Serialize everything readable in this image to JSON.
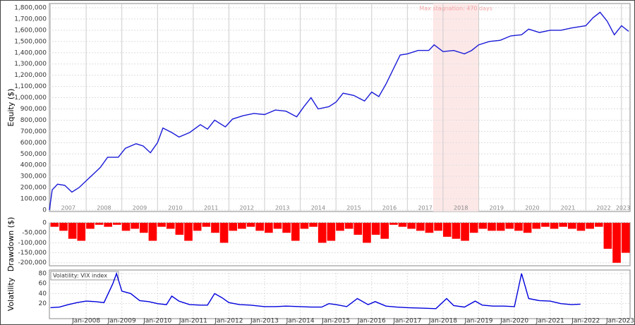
{
  "chart_data": [
    {
      "type": "line",
      "y_label": "Equity ($)",
      "color": "#1a1ad8",
      "grid": true,
      "xlim": [
        2006.97,
        2023.24
      ],
      "ylim": [
        -12500,
        1837600
      ],
      "xticks": [
        {
          "value": 2007,
          "label": "2007"
        },
        {
          "value": 2008,
          "label": "2008"
        },
        {
          "value": 2009,
          "label": "2009"
        },
        {
          "value": 2010,
          "label": "2010"
        },
        {
          "value": 2011,
          "label": "2011"
        },
        {
          "value": 2012,
          "label": "2012"
        },
        {
          "value": 2013,
          "label": "2013"
        },
        {
          "value": 2014,
          "label": "2014"
        },
        {
          "value": 2015,
          "label": "2015"
        },
        {
          "value": 2016,
          "label": "2016"
        },
        {
          "value": 2017,
          "label": "2017"
        },
        {
          "value": 2018,
          "label": "2018"
        },
        {
          "value": 2019,
          "label": "2019"
        },
        {
          "value": 2020,
          "label": "2020"
        },
        {
          "value": 2021,
          "label": "2021"
        },
        {
          "value": 2022,
          "label": "2022"
        },
        {
          "value": 2023,
          "label": "2023"
        }
      ],
      "yticks": [
        0,
        {
          "value": 100000,
          "label": "100,000"
        },
        {
          "value": 200000,
          "label": "200,000"
        },
        {
          "value": 300000,
          "label": "300,000"
        },
        {
          "value": 400000,
          "label": "400,000"
        },
        {
          "value": 500000,
          "label": "500,000"
        },
        {
          "value": 600000,
          "label": "600,000"
        },
        {
          "value": 700000,
          "label": "700,000"
        },
        {
          "value": 800000,
          "label": "800,000"
        },
        {
          "value": 900000,
          "label": "900,000"
        },
        {
          "value": 1000000,
          "label": "1,000,000"
        },
        {
          "value": 1100000,
          "label": "1,100,000"
        },
        {
          "value": 1200000,
          "label": "1,200,000"
        },
        {
          "value": 1300000,
          "label": "1,300,000"
        },
        {
          "value": 1400000,
          "label": "1,400,000"
        },
        {
          "value": 1500000,
          "label": "1,500,000"
        },
        {
          "value": 1600000,
          "label": "1,600,000"
        },
        {
          "value": 1700000,
          "label": "1,700,000"
        },
        {
          "value": 1800000,
          "label": "1,800,000"
        }
      ],
      "annotations": [
        {
          "text": "Max stagnation: 470 days",
          "x0": 2017.72,
          "x1": 2019.0
        }
      ],
      "x": [
        2006.97,
        2007.05,
        2007.2,
        2007.4,
        2007.6,
        2007.8,
        2008.0,
        2008.2,
        2008.4,
        2008.6,
        2008.9,
        2009.1,
        2009.4,
        2009.6,
        2009.8,
        2010.0,
        2010.15,
        2010.4,
        2010.6,
        2010.9,
        2011.2,
        2011.4,
        2011.6,
        2011.9,
        2012.1,
        2012.4,
        2012.7,
        2013.0,
        2013.3,
        2013.6,
        2013.9,
        2014.1,
        2014.3,
        2014.5,
        2014.8,
        2015.0,
        2015.2,
        2015.5,
        2015.8,
        2016.0,
        2016.2,
        2016.4,
        2016.6,
        2016.8,
        2017.0,
        2017.3,
        2017.6,
        2017.75,
        2018.0,
        2018.3,
        2018.6,
        2018.8,
        2019.0,
        2019.3,
        2019.6,
        2019.9,
        2020.2,
        2020.4,
        2020.7,
        2021.0,
        2021.3,
        2021.6,
        2021.8,
        2022.0,
        2022.2,
        2022.4,
        2022.6,
        2022.8,
        2023.0,
        2023.2
      ],
      "values": [
        0,
        180000,
        230000,
        220000,
        160000,
        200000,
        260000,
        320000,
        380000,
        470000,
        470000,
        550000,
        590000,
        570000,
        510000,
        600000,
        730000,
        690000,
        650000,
        690000,
        760000,
        720000,
        800000,
        740000,
        810000,
        840000,
        860000,
        850000,
        890000,
        880000,
        830000,
        920000,
        1000000,
        900000,
        920000,
        960000,
        1040000,
        1020000,
        970000,
        1050000,
        1010000,
        1120000,
        1250000,
        1380000,
        1390000,
        1420000,
        1420000,
        1470000,
        1410000,
        1420000,
        1390000,
        1420000,
        1470000,
        1500000,
        1510000,
        1550000,
        1560000,
        1610000,
        1580000,
        1600000,
        1600000,
        1620000,
        1630000,
        1640000,
        1710000,
        1760000,
        1680000,
        1560000,
        1640000,
        1590000
      ]
    },
    {
      "type": "bar",
      "y_label": "Drawdown ($)",
      "color": "#ff0000",
      "grid": true,
      "xlim": [
        2006.97,
        2023.24
      ],
      "ylim": [
        -215000,
        0
      ],
      "yticks": [
        0,
        {
          "value": -50000,
          "label": "-50,000"
        },
        {
          "value": -100000,
          "label": "-100,000"
        },
        {
          "value": -150000,
          "label": "-150,000"
        },
        {
          "value": -200000,
          "label": "-200,000"
        }
      ],
      "x": [
        2007.0,
        2007.25,
        2007.5,
        2007.75,
        2008.0,
        2008.25,
        2008.5,
        2008.75,
        2009.0,
        2009.25,
        2009.5,
        2009.75,
        2010.0,
        2010.25,
        2010.5,
        2010.75,
        2011.0,
        2011.25,
        2011.5,
        2011.75,
        2012.0,
        2012.25,
        2012.5,
        2012.75,
        2013.0,
        2013.25,
        2013.5,
        2013.75,
        2014.0,
        2014.25,
        2014.5,
        2014.75,
        2015.0,
        2015.25,
        2015.5,
        2015.75,
        2016.0,
        2016.25,
        2016.5,
        2016.75,
        2017.0,
        2017.25,
        2017.5,
        2017.75,
        2018.0,
        2018.25,
        2018.5,
        2018.75,
        2019.0,
        2019.25,
        2019.5,
        2019.75,
        2020.0,
        2020.25,
        2020.5,
        2020.75,
        2021.0,
        2021.25,
        2021.5,
        2021.75,
        2022.0,
        2022.25,
        2022.5,
        2022.75,
        2023.0
      ],
      "values": [
        -20000,
        -40000,
        -80000,
        -90000,
        -30000,
        -10000,
        -20000,
        -10000,
        -40000,
        -30000,
        -50000,
        -90000,
        -20000,
        -30000,
        -60000,
        -90000,
        -40000,
        -20000,
        -50000,
        -100000,
        -40000,
        -30000,
        -20000,
        -40000,
        -50000,
        -30000,
        -50000,
        -90000,
        -30000,
        -20000,
        -100000,
        -90000,
        -40000,
        -30000,
        -60000,
        -100000,
        -60000,
        -80000,
        -10000,
        -20000,
        -30000,
        -40000,
        -50000,
        -40000,
        -70000,
        -80000,
        -90000,
        -50000,
        -30000,
        -40000,
        -40000,
        -30000,
        -40000,
        -50000,
        -30000,
        -20000,
        -30000,
        -20000,
        -30000,
        -40000,
        -30000,
        -20000,
        -130000,
        -200000,
        -150000
      ]
    },
    {
      "type": "line",
      "y_label": "Volatility",
      "title": "Volatility: VIX index",
      "color": "#0000dd",
      "grid": true,
      "xlim": [
        2006.97,
        2023.24
      ],
      "ylim": [
        -10,
        87
      ],
      "xticks": [
        {
          "value": 2008,
          "label": "Jan-2008"
        },
        {
          "value": 2009,
          "label": "Jan-2009"
        },
        {
          "value": 2010,
          "label": "Jan-2010"
        },
        {
          "value": 2011,
          "label": "Jan-2011"
        },
        {
          "value": 2012,
          "label": "Jan-2012"
        },
        {
          "value": 2013,
          "label": "Jan-2013"
        },
        {
          "value": 2014,
          "label": "Jan-2014"
        },
        {
          "value": 2015,
          "label": "Jan-2015"
        },
        {
          "value": 2016,
          "label": "Jan-2016"
        },
        {
          "value": 2017,
          "label": "Jan-2017"
        },
        {
          "value": 2018,
          "label": "Jan-2018"
        },
        {
          "value": 2019,
          "label": "Jan-2019"
        },
        {
          "value": 2020,
          "label": "Jan-2020"
        },
        {
          "value": 2021,
          "label": "Jan-2021"
        },
        {
          "value": 2022,
          "label": "Jan-2022"
        },
        {
          "value": 2023,
          "label": "Jan-2023"
        }
      ],
      "yticks": [
        20,
        40,
        60,
        80
      ],
      "x": [
        2007.0,
        2007.25,
        2007.5,
        2007.75,
        2008.0,
        2008.25,
        2008.5,
        2008.75,
        2008.85,
        2009.0,
        2009.25,
        2009.5,
        2009.75,
        2010.0,
        2010.25,
        2010.4,
        2010.6,
        2010.9,
        2011.2,
        2011.4,
        2011.6,
        2011.8,
        2012.0,
        2012.3,
        2012.6,
        2013.0,
        2013.3,
        2013.6,
        2014.0,
        2014.3,
        2014.6,
        2014.8,
        2015.0,
        2015.3,
        2015.6,
        2015.9,
        2016.1,
        2016.4,
        2016.7,
        2017.0,
        2017.4,
        2017.8,
        2018.1,
        2018.3,
        2018.6,
        2018.9,
        2019.1,
        2019.4,
        2019.7,
        2020.0,
        2020.2,
        2020.4,
        2020.7,
        2021.0,
        2021.3,
        2021.6,
        2021.85
      ],
      "values": [
        12,
        13,
        18,
        22,
        25,
        24,
        22,
        60,
        80,
        45,
        40,
        26,
        24,
        20,
        18,
        35,
        25,
        18,
        17,
        17,
        40,
        32,
        22,
        18,
        17,
        14,
        14,
        15,
        14,
        13,
        13,
        20,
        18,
        14,
        30,
        18,
        24,
        15,
        13,
        12,
        11,
        10,
        30,
        16,
        13,
        25,
        17,
        15,
        15,
        14,
        80,
        30,
        26,
        25,
        20,
        18,
        19
      ]
    }
  ]
}
